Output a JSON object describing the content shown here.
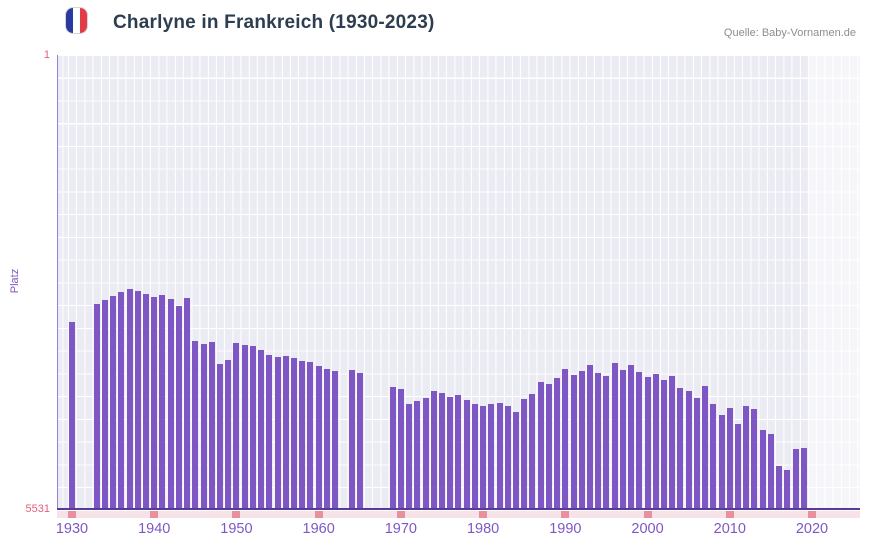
{
  "header": {
    "title": "Charlyne in Frankreich (1930-2023)",
    "source": "Quelle: Baby-Vornamen.de",
    "flag_icon": "france-flag-icon"
  },
  "colors": {
    "bar": "#7e57c5",
    "x_labels": "#7e57c5",
    "rank_ticks": "#e0607a",
    "title": "#2d3e50",
    "source": "#8d8d8d",
    "grid_bg": "#ebebf3",
    "axis_line": "#553c9a",
    "decade_marks": "#e8919d",
    "flag_blue": "#2b3a9e",
    "flag_red": "#e23d46"
  },
  "chart_data": {
    "type": "bar",
    "title": "Charlyne in Frankreich (1930-2023)",
    "xlabel": "",
    "ylabel": "Platz",
    "y_axis": {
      "top_label": "1",
      "bottom_label": "5531",
      "min": 1,
      "max": 5531,
      "inverted": true,
      "note": "rank 1 at top; taller bar = better rank"
    },
    "x_ticks": [
      1930,
      1940,
      1950,
      1960,
      1970,
      1980,
      1990,
      2000,
      2010,
      2020
    ],
    "x_range": [
      1928,
      2026
    ],
    "highlight_years": {
      "from": 2020,
      "to": 2023
    },
    "legend": null,
    "grid": true,
    "points_format": [
      "year",
      "rank"
    ],
    "points": [
      [
        1930,
        3250
      ],
      [
        1931,
        null
      ],
      [
        1932,
        null
      ],
      [
        1933,
        3030
      ],
      [
        1934,
        2980
      ],
      [
        1935,
        2930
      ],
      [
        1936,
        2880
      ],
      [
        1937,
        2840
      ],
      [
        1938,
        2870
      ],
      [
        1939,
        2910
      ],
      [
        1940,
        2940
      ],
      [
        1941,
        2920
      ],
      [
        1942,
        2970
      ],
      [
        1943,
        3050
      ],
      [
        1944,
        2950
      ],
      [
        1945,
        3480
      ],
      [
        1946,
        3510
      ],
      [
        1947,
        3490
      ],
      [
        1948,
        3760
      ],
      [
        1949,
        3710
      ],
      [
        1950,
        3500
      ],
      [
        1951,
        3530
      ],
      [
        1952,
        3540
      ],
      [
        1953,
        3590
      ],
      [
        1954,
        3650
      ],
      [
        1955,
        3670
      ],
      [
        1956,
        3660
      ],
      [
        1957,
        3680
      ],
      [
        1958,
        3720
      ],
      [
        1959,
        3730
      ],
      [
        1960,
        3780
      ],
      [
        1961,
        3820
      ],
      [
        1962,
        3840
      ],
      [
        1963,
        null
      ],
      [
        1964,
        3830
      ],
      [
        1965,
        3870
      ],
      [
        1966,
        null
      ],
      [
        1967,
        null
      ],
      [
        1968,
        null
      ],
      [
        1969,
        4030
      ],
      [
        1970,
        4060
      ],
      [
        1971,
        4240
      ],
      [
        1972,
        4210
      ],
      [
        1973,
        4170
      ],
      [
        1974,
        4080
      ],
      [
        1975,
        4110
      ],
      [
        1976,
        4160
      ],
      [
        1977,
        4130
      ],
      [
        1978,
        4190
      ],
      [
        1979,
        4240
      ],
      [
        1980,
        4270
      ],
      [
        1981,
        4240
      ],
      [
        1982,
        4230
      ],
      [
        1983,
        4270
      ],
      [
        1984,
        4340
      ],
      [
        1985,
        4180
      ],
      [
        1986,
        4120
      ],
      [
        1987,
        3970
      ],
      [
        1988,
        4000
      ],
      [
        1989,
        3930
      ],
      [
        1990,
        3820
      ],
      [
        1991,
        3890
      ],
      [
        1992,
        3840
      ],
      [
        1993,
        3770
      ],
      [
        1994,
        3870
      ],
      [
        1995,
        3900
      ],
      [
        1996,
        3740
      ],
      [
        1997,
        3830
      ],
      [
        1998,
        3770
      ],
      [
        1999,
        3850
      ],
      [
        2000,
        3910
      ],
      [
        2001,
        3880
      ],
      [
        2002,
        3950
      ],
      [
        2003,
        3900
      ],
      [
        2004,
        4050
      ],
      [
        2005,
        4080
      ],
      [
        2006,
        4170
      ],
      [
        2007,
        4020
      ],
      [
        2008,
        4240
      ],
      [
        2009,
        4380
      ],
      [
        2010,
        4290
      ],
      [
        2011,
        4490
      ],
      [
        2012,
        4270
      ],
      [
        2013,
        4300
      ],
      [
        2014,
        4560
      ],
      [
        2015,
        4610
      ],
      [
        2016,
        4990
      ],
      [
        2017,
        5040
      ],
      [
        2018,
        4790
      ],
      [
        2019,
        4780
      ],
      [
        2020,
        null
      ],
      [
        2021,
        null
      ],
      [
        2022,
        null
      ],
      [
        2023,
        null
      ]
    ]
  }
}
